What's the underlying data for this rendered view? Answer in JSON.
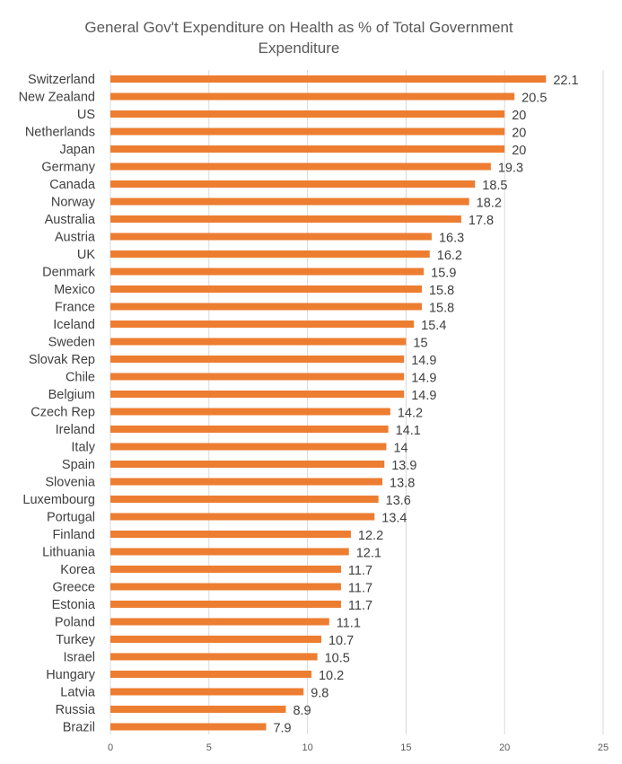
{
  "chart_data": {
    "type": "bar",
    "orientation": "horizontal",
    "title_lines": [
      "General Gov't Expenditure on Health as % of Total Government",
      "Expenditure"
    ],
    "xlabel": "",
    "ylabel": "",
    "xlim": [
      0,
      25
    ],
    "x_ticks": [
      0,
      5,
      10,
      15,
      20,
      25
    ],
    "grid": true,
    "bar_color": "#ed7d31",
    "categories": [
      "Switzerland",
      "New Zealand",
      "US",
      "Netherlands",
      "Japan",
      "Germany",
      "Canada",
      "Norway",
      "Australia",
      "Austria",
      "UK",
      "Denmark",
      "Mexico",
      "France",
      "Iceland",
      "Sweden",
      "Slovak Rep",
      "Chile",
      "Belgium",
      "Czech Rep",
      "Ireland",
      "Italy",
      "Spain",
      "Slovenia",
      "Luxembourg",
      "Portugal",
      "Finland",
      "Lithuania",
      "Korea",
      "Greece",
      "Estonia",
      "Poland",
      "Turkey",
      "Israel",
      "Hungary",
      "Latvia",
      "Russia",
      "Brazil"
    ],
    "values": [
      22.1,
      20.5,
      20,
      20,
      20,
      19.3,
      18.5,
      18.2,
      17.8,
      16.3,
      16.2,
      15.9,
      15.8,
      15.8,
      15.4,
      15,
      14.9,
      14.9,
      14.9,
      14.2,
      14.1,
      14,
      13.9,
      13.8,
      13.6,
      13.4,
      12.2,
      12.1,
      11.7,
      11.7,
      11.7,
      11.1,
      10.7,
      10.5,
      10.2,
      9.8,
      8.9,
      7.9
    ]
  }
}
